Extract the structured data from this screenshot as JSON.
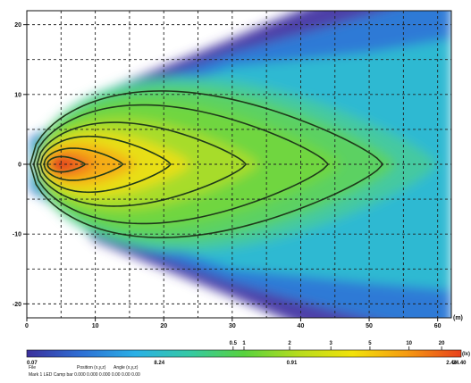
{
  "chart_data": {
    "type": "heatmap",
    "title": "",
    "xlabel": "",
    "ylabel": "",
    "x_unit_label": "(m)",
    "xlim": [
      0,
      62
    ],
    "ylim": [
      -22,
      22
    ],
    "x_ticks": [
      0,
      10,
      20,
      30,
      40,
      50,
      60
    ],
    "y_ticks": [
      20,
      10,
      0,
      -10,
      -20
    ],
    "grid": true,
    "source_position": [
      4,
      0
    ],
    "colorscale": {
      "tick_labels": [
        "0.07",
        "8.24",
        "0.91",
        "2.44",
        "24.40"
      ],
      "unit_label": "(lx)",
      "colors": [
        "#3b2f9c",
        "#2e6fd4",
        "#2ab0e6",
        "#35c9a4",
        "#58d23e",
        "#b6dc1e",
        "#f2e20a",
        "#f59a12",
        "#e8411c"
      ],
      "markers": [
        "0.5",
        "1",
        "2",
        "3",
        "5",
        "10",
        "20"
      ]
    },
    "contours": [
      {
        "level": 1,
        "x_min": 0.5,
        "x_max": 52,
        "half_width": 10.5
      },
      {
        "level": 2,
        "x_min": 1,
        "x_max": 44,
        "half_width": 8.5
      },
      {
        "level": 5,
        "x_min": 1.5,
        "x_max": 32,
        "half_width": 6
      },
      {
        "level": 10,
        "x_min": 2,
        "x_max": 21,
        "half_width": 4
      },
      {
        "level": 20,
        "x_min": 2.5,
        "x_max": 14,
        "half_width": 2.3
      },
      {
        "level": 50,
        "x_min": 3,
        "x_max": 8.5,
        "half_width": 1.1
      }
    ],
    "footer": {
      "line1": [
        "File",
        "Position (x,y,z)",
        "Angle (x,y,z)"
      ],
      "line2": "Mark 1 LED Camp bar 0.000 0.000 0.000 0.00 0.00 0.00"
    }
  }
}
